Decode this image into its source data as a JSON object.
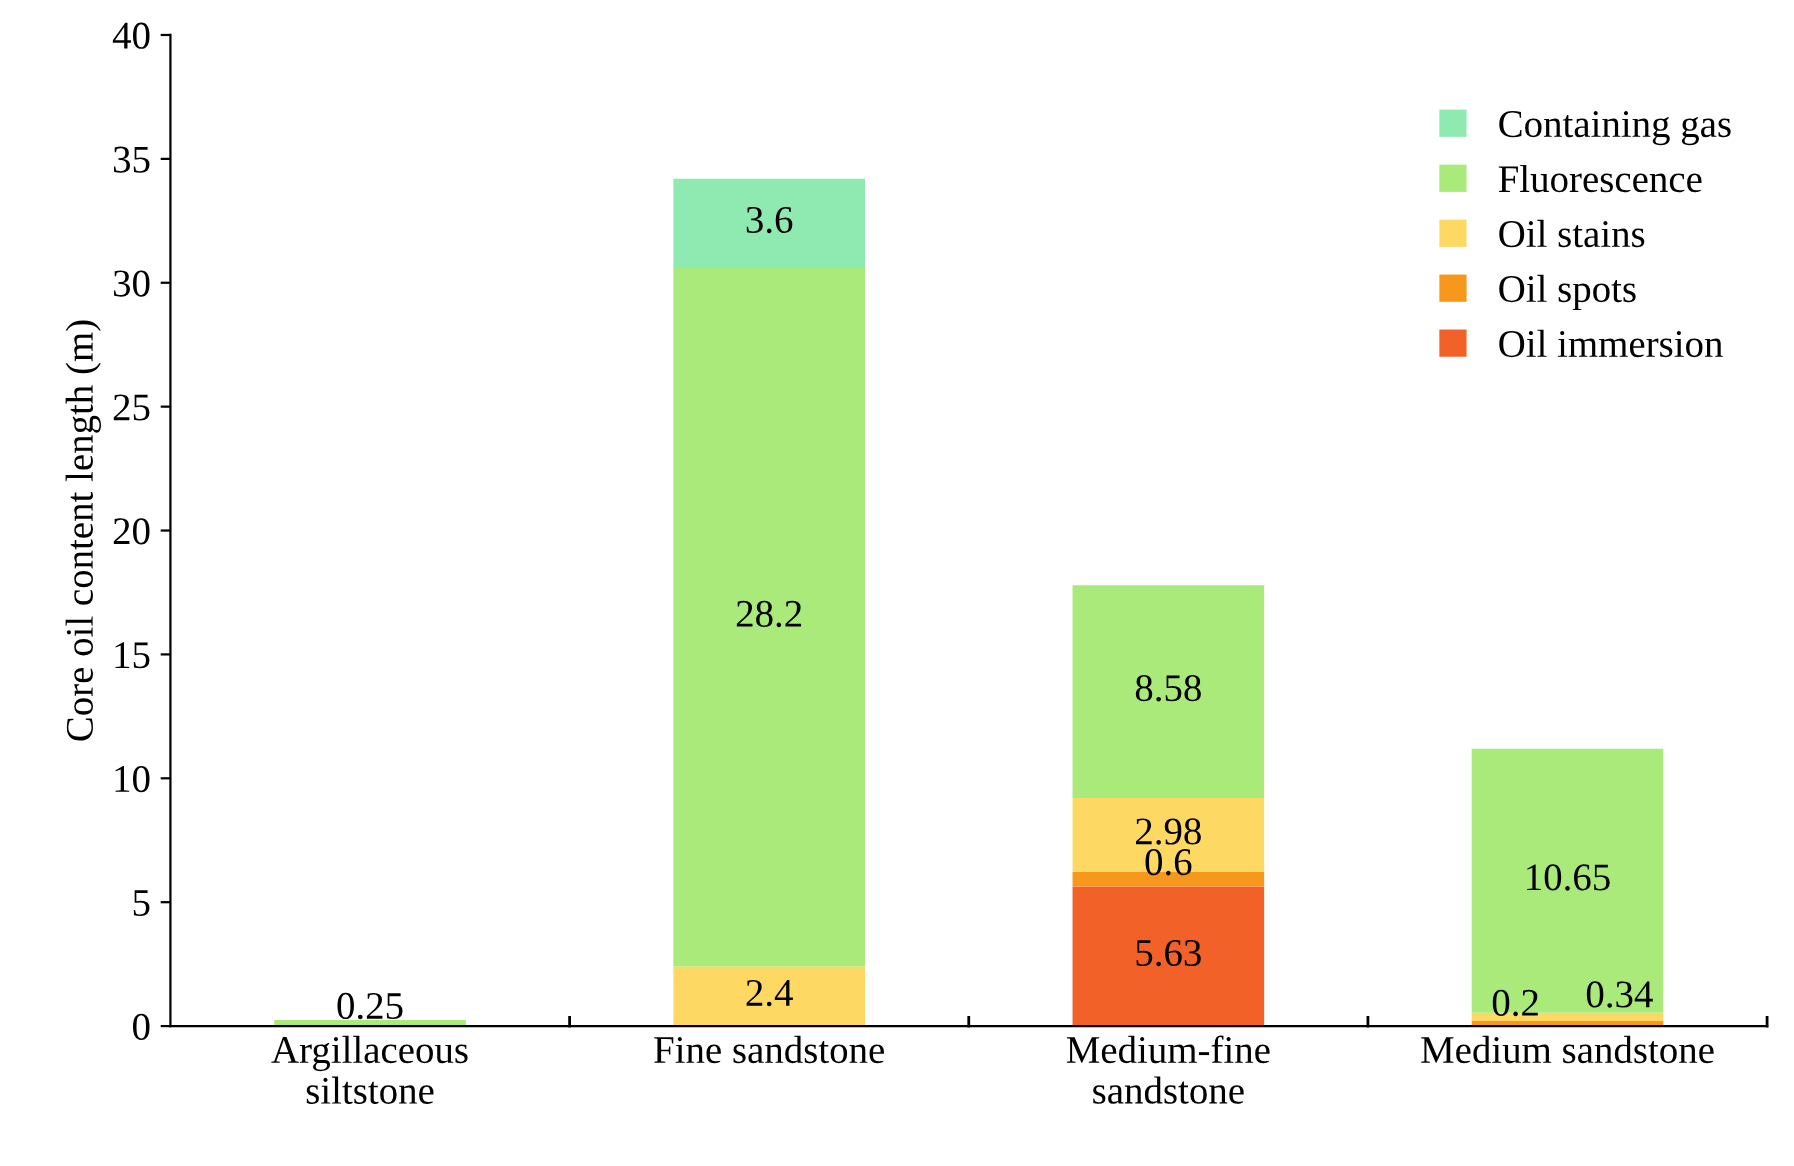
{
  "chart_data": {
    "type": "bar",
    "stacked": true,
    "ylabel": "Core oil content length (m)",
    "categories": [
      "Argillaceous\nsiltstone",
      "Fine sandstone",
      "Medium-fine\nsandstone",
      "Medium sandstone"
    ],
    "series": [
      {
        "name": "Oil immersion",
        "color": "#f26127",
        "values": [
          null,
          null,
          5.63,
          null
        ]
      },
      {
        "name": "Oil spots",
        "color": "#f7981d",
        "values": [
          null,
          null,
          0.6,
          0.2
        ]
      },
      {
        "name": "Oil stains",
        "color": "#fdd862",
        "values": [
          null,
          2.4,
          2.98,
          0.34
        ]
      },
      {
        "name": "Fluorescence",
        "color": "#a9ea7a",
        "values": [
          0.25,
          28.2,
          8.58,
          10.65
        ]
      },
      {
        "name": "Containing gas",
        "color": "#8eeab0",
        "values": [
          null,
          3.6,
          null,
          null
        ]
      }
    ],
    "ylim": [
      0,
      40
    ],
    "yticks": [
      0,
      5,
      10,
      15,
      20,
      25,
      30,
      35,
      40
    ],
    "grid": false,
    "legend": "top right",
    "data_labels": true
  }
}
